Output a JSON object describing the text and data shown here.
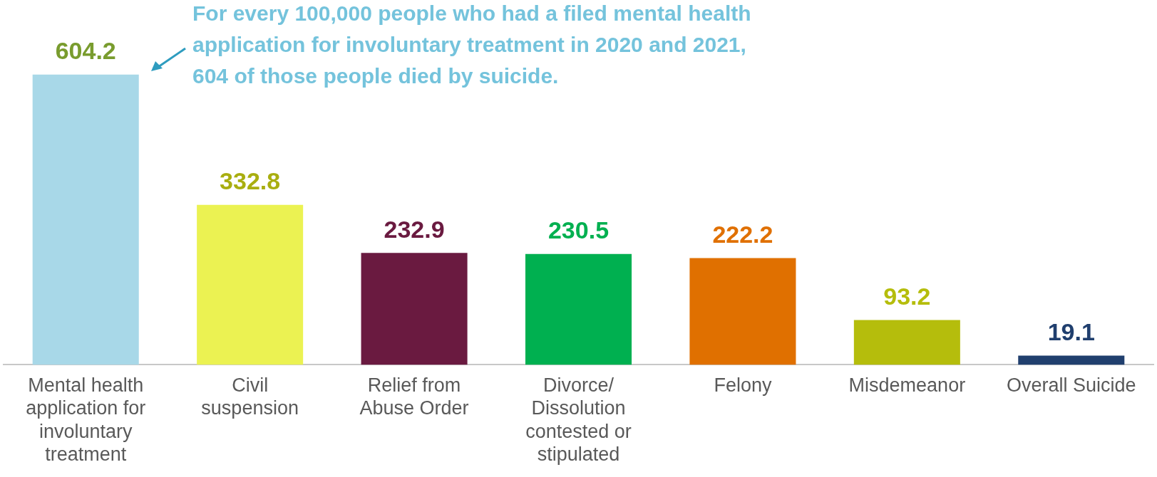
{
  "chart_data": {
    "type": "bar",
    "categories": [
      "Mental health application for involuntary treatment",
      "Civil suspension",
      "Relief from Abuse Order",
      "Divorce/ Dissolution contested or stipulated",
      "Felony",
      "Misdemeanor",
      "Overall Suicide"
    ],
    "values": [
      604.2,
      332.8,
      232.9,
      230.5,
      222.2,
      93.2,
      19.1
    ],
    "colors": [
      "#a8d8e8",
      "#ebf252",
      "#6a1a40",
      "#00b050",
      "#e07000",
      "#b5bd0c",
      "#203f6e"
    ],
    "data_labels": true,
    "annotations": [
      "For every 100,000 people who had a filed mental health application for involuntary treatment in 2020 and 2021, 604 of those people died by suicide."
    ]
  }
}
